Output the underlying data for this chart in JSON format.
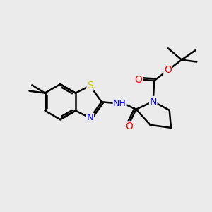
{
  "background_color": "#ebebeb",
  "bond_color": "#000000",
  "bond_width": 1.8,
  "atom_colors": {
    "S": "#cccc00",
    "N": "#0000ff",
    "O": "#ff0000",
    "H": "#008888",
    "C": "#000000"
  },
  "font_size": 8.5,
  "figsize": [
    3.0,
    3.0
  ],
  "dpi": 100
}
